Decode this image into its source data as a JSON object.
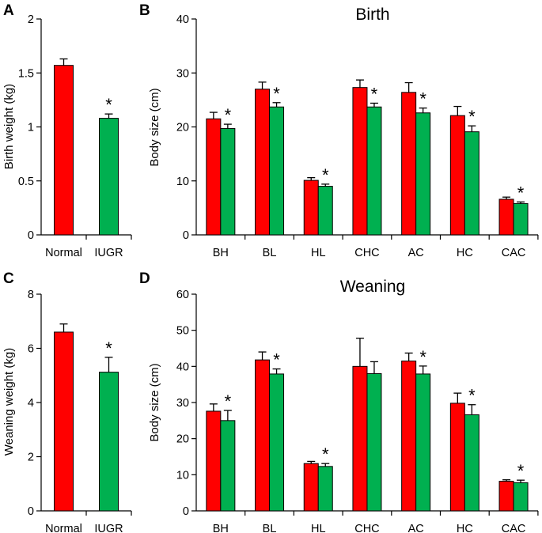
{
  "colors": {
    "normal": "#ff0000",
    "iugr": "#00b050"
  },
  "chart_data": [
    {
      "id": "A",
      "type": "bar",
      "title": "",
      "ylabel": "Birth weight (kg)",
      "ylim": [
        0,
        2
      ],
      "yticks": [
        0,
        0.5,
        1,
        1.5,
        2
      ],
      "ytick_labels": [
        "0",
        "0.5",
        "1",
        "1.5",
        "2"
      ],
      "categories": [
        "Normal",
        "IUGR"
      ],
      "values": [
        1.57,
        1.08
      ],
      "errors": [
        0.06,
        0.04
      ],
      "significant": [
        false,
        true
      ],
      "sig_marker": "*"
    },
    {
      "id": "B",
      "type": "bar",
      "title": "Birth",
      "ylabel": "Body size (cm)",
      "ylim": [
        0,
        40
      ],
      "yticks": [
        0,
        10,
        20,
        30,
        40
      ],
      "ytick_labels": [
        "0",
        "10",
        "20",
        "30",
        "40"
      ],
      "categories": [
        "BH",
        "BL",
        "HL",
        "CHC",
        "AC",
        "HC",
        "CAC"
      ],
      "series": [
        {
          "name": "Normal",
          "values": [
            21.5,
            27.0,
            10.1,
            27.3,
            26.4,
            22.1,
            6.6
          ],
          "errors": [
            1.2,
            1.3,
            0.5,
            1.4,
            1.8,
            1.7,
            0.4
          ]
        },
        {
          "name": "IUGR",
          "values": [
            19.7,
            23.7,
            9.0,
            23.7,
            22.6,
            19.1,
            5.8
          ],
          "errors": [
            0.8,
            0.8,
            0.4,
            0.7,
            0.9,
            1.1,
            0.3
          ]
        }
      ],
      "significant": [
        true,
        true,
        true,
        true,
        true,
        true,
        true
      ],
      "sig_marker": "*"
    },
    {
      "id": "C",
      "type": "bar",
      "title": "",
      "ylabel": "Weaning weight (kg)",
      "ylim": [
        0,
        8
      ],
      "yticks": [
        0,
        2,
        4,
        6,
        8
      ],
      "ytick_labels": [
        "0",
        "2",
        "4",
        "6",
        "8"
      ],
      "categories": [
        "Normal",
        "IUGR"
      ],
      "values": [
        6.6,
        5.12
      ],
      "errors": [
        0.3,
        0.55
      ],
      "significant": [
        false,
        true
      ],
      "sig_marker": "*"
    },
    {
      "id": "D",
      "type": "bar",
      "title": "Weaning",
      "ylabel": "Body size (cm)",
      "ylim": [
        0,
        60
      ],
      "yticks": [
        0,
        10,
        20,
        30,
        40,
        50,
        60
      ],
      "ytick_labels": [
        "0",
        "10",
        "20",
        "30",
        "40",
        "50",
        "60"
      ],
      "categories": [
        "BH",
        "BL",
        "HL",
        "CHC",
        "AC",
        "HC",
        "CAC"
      ],
      "series": [
        {
          "name": "Normal",
          "values": [
            27.6,
            41.8,
            13.1,
            40.0,
            41.5,
            29.8,
            8.2
          ],
          "errors": [
            2.0,
            2.2,
            0.6,
            7.8,
            2.2,
            2.8,
            0.4
          ]
        },
        {
          "name": "IUGR",
          "values": [
            25.0,
            37.9,
            12.3,
            38.0,
            37.9,
            26.6,
            7.8
          ],
          "errors": [
            2.8,
            1.4,
            0.8,
            3.3,
            2.2,
            2.8,
            0.7
          ]
        }
      ],
      "significant": [
        true,
        true,
        true,
        false,
        true,
        true,
        true
      ],
      "sig_marker": "*"
    }
  ]
}
